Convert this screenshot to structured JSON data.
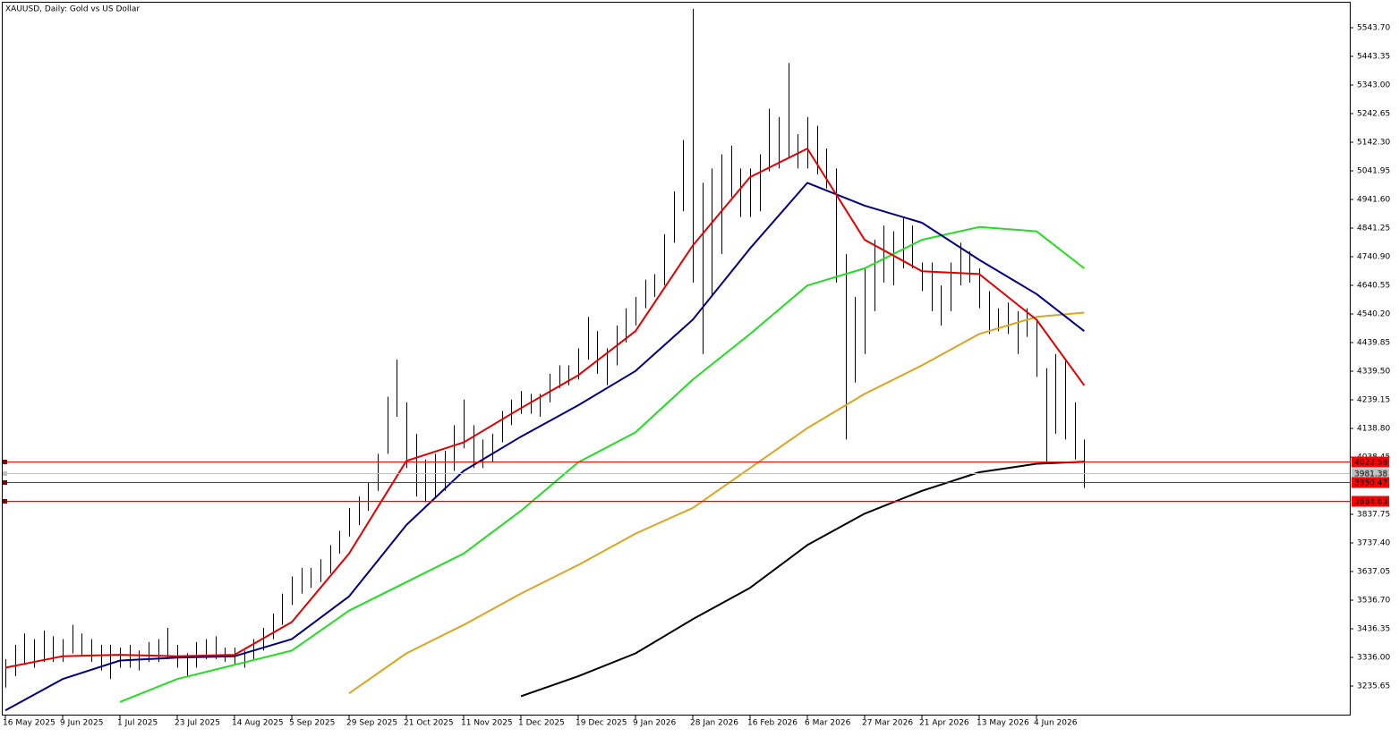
{
  "chart_data": {
    "type": "ohlc",
    "title": "XAUUSD, Daily:  Gold vs US Dollar",
    "bar_color": "#000000",
    "ylim": [
      3132.2,
      5634.6
    ],
    "yticks": [
      {
        "value": 3235.65,
        "label": "3235.65"
      },
      {
        "value": 3336,
        "label": "3336.00"
      },
      {
        "value": 3436.35,
        "label": "3436.35"
      },
      {
        "value": 3536.7,
        "label": "3536.70"
      },
      {
        "value": 3637.05,
        "label": "3637.05"
      },
      {
        "value": 3737.4,
        "label": "3737.40"
      },
      {
        "value": 3837.75,
        "label": "3837.75"
      },
      {
        "value": 4038.45,
        "label": "4038.45"
      },
      {
        "value": 4138.8,
        "label": "4138.80"
      },
      {
        "value": 4239.15,
        "label": "4239.15"
      },
      {
        "value": 4339.5,
        "label": "4339.50"
      },
      {
        "value": 4439.85,
        "label": "4439.85"
      },
      {
        "value": 4540.2,
        "label": "4540.20"
      },
      {
        "value": 4640.55,
        "label": "4640.55"
      },
      {
        "value": 4740.9,
        "label": "4740.90"
      },
      {
        "value": 4841.25,
        "label": "4841.25"
      },
      {
        "value": 4941.6,
        "label": "4941.60"
      },
      {
        "value": 5041.95,
        "label": "5041.95"
      },
      {
        "value": 5142.3,
        "label": "5142.30"
      },
      {
        "value": 5242.65,
        "label": "5242.65"
      },
      {
        "value": 5343,
        "label": "5343.00"
      },
      {
        "value": 5443.35,
        "label": "5443.35"
      },
      {
        "value": 5543.7,
        "label": "5543.70"
      }
    ],
    "x_labels": [
      "16 May 2025",
      "9 Jun 2025",
      "1 Jul 2025",
      "23 Jul 2025",
      "14 Aug 2025",
      "5 Sep 2025",
      "29 Sep 2025",
      "21 Oct 2025",
      "11 Nov 2025",
      "1 Dec 2025",
      "19 Dec 2025",
      "9 Jan 2026",
      "28 Jan 2026",
      "16 Feb 2026",
      "6 Mar 2026",
      "27 Mar 2026",
      "21 Apr 2026",
      "13 May 2026",
      "4 Jun 2026"
    ],
    "high": [
      3330,
      3380,
      3420,
      3400,
      3430,
      3410,
      3400,
      3450,
      3420,
      3400,
      3380,
      3380,
      3370,
      3380,
      3360,
      3390,
      3400,
      3440,
      3380,
      3350,
      3390,
      3400,
      3410,
      3370,
      3370,
      3360,
      3400,
      3440,
      3490,
      3560,
      3620,
      3650,
      3650,
      3680,
      3730,
      3780,
      3860,
      3900,
      3950,
      4050,
      4250,
      4380,
      4230,
      4120,
      4030,
      4050,
      4060,
      4150,
      4240,
      4150,
      4100,
      4120,
      4200,
      4240,
      4270,
      4260,
      4260,
      4330,
      4360,
      4360,
      4420,
      4530,
      4480,
      4420,
      4500,
      4560,
      4600,
      4660,
      4680,
      4820,
      4970,
      5150,
      5610,
      5000,
      5050,
      5100,
      5130,
      5050,
      5050,
      5100,
      5260,
      5230,
      5420,
      5170,
      5230,
      5200,
      5120,
      5050,
      4750,
      4600,
      4700,
      4800,
      4850,
      4830,
      4880,
      4850,
      4720,
      4720,
      4640,
      4720,
      4790,
      4760,
      4700,
      4620,
      4560,
      4580,
      4550,
      4560,
      4520,
      4350,
      4400,
      4380,
      4230,
      4100
    ],
    "low": [
      3230,
      3270,
      3310,
      3300,
      3320,
      3320,
      3320,
      3350,
      3340,
      3320,
      3290,
      3260,
      3300,
      3300,
      3290,
      3320,
      3320,
      3330,
      3300,
      3270,
      3300,
      3330,
      3330,
      3320,
      3310,
      3300,
      3330,
      3360,
      3400,
      3450,
      3520,
      3560,
      3580,
      3600,
      3630,
      3700,
      3760,
      3800,
      3850,
      3920,
      4050,
      4180,
      4000,
      3900,
      3880,
      3900,
      3920,
      3990,
      4070,
      4000,
      4000,
      4020,
      4090,
      4150,
      4190,
      4190,
      4180,
      4230,
      4280,
      4290,
      4310,
      4380,
      4330,
      4290,
      4360,
      4440,
      4500,
      4560,
      4600,
      4640,
      4790,
      4900,
      4650,
      4400,
      4600,
      4750,
      4950,
      4880,
      4880,
      4900,
      5040,
      5050,
      5090,
      5050,
      5050,
      5030,
      4980,
      4650,
      4100,
      4300,
      4400,
      4550,
      4650,
      4640,
      4700,
      4700,
      4620,
      4550,
      4500,
      4550,
      4640,
      4650,
      4560,
      4470,
      4480,
      4470,
      4400,
      4460,
      4320,
      4020,
      4120,
      4100,
      4030,
      3930
    ],
    "moving_averages": [
      {
        "color": "#000000",
        "values": [
          null,
          null,
          null,
          null,
          null,
          null,
          null,
          null,
          null,
          3200,
          3270,
          3350,
          3470,
          3580,
          3730,
          3840,
          3920,
          3985,
          4015,
          4022
        ]
      },
      {
        "color": "#daa520",
        "values": [
          null,
          null,
          null,
          null,
          null,
          null,
          3210,
          3350,
          3450,
          3560,
          3660,
          3770,
          3860,
          4000,
          4140,
          4260,
          4360,
          4470,
          4530,
          4545
        ]
      },
      {
        "color": "#22dd22",
        "values": [
          null,
          null,
          3180,
          3260,
          3310,
          3360,
          3500,
          3600,
          3700,
          3850,
          4020,
          4125,
          4310,
          4470,
          4640,
          4700,
          4800,
          4845,
          4830,
          4700
        ]
      },
      {
        "color": "#000080",
        "values": [
          3150,
          3260,
          3325,
          3335,
          3340,
          3400,
          3550,
          3800,
          3990,
          4110,
          4220,
          4340,
          4520,
          4770,
          5000,
          4920,
          4860,
          4730,
          4610,
          4480
        ]
      },
      {
        "color": "#e00000",
        "values": [
          3300,
          3340,
          3345,
          3340,
          3345,
          3460,
          3700,
          4025,
          4090,
          4210,
          4325,
          4480,
          4780,
          5020,
          5120,
          4800,
          4690,
          4680,
          4520,
          4290
        ]
      }
    ],
    "levels": [
      {
        "value": 4022.58,
        "color": "#ff0000"
      },
      {
        "value": 3981.38,
        "color": "#c0c0c0"
      },
      {
        "value": 3950.47,
        "color": "#ff0000"
      },
      {
        "value": 3884.63,
        "color": "#ff0000"
      }
    ]
  }
}
